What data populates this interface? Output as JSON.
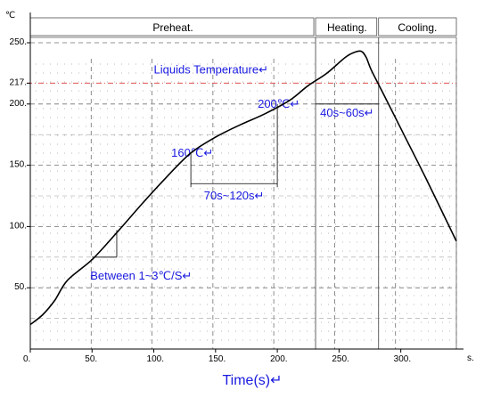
{
  "chart_data": {
    "type": "line",
    "yunit": "℃",
    "xunit": "s.",
    "xlabel": "Time(s)↵",
    "xlim": [
      0,
      345
    ],
    "ylim": [
      0,
      250
    ],
    "x_ticks": [
      {
        "value": 0,
        "label": "0."
      },
      {
        "value": 50,
        "label": "50."
      },
      {
        "value": 100,
        "label": "100."
      },
      {
        "value": 150,
        "label": "150."
      },
      {
        "value": 200,
        "label": "200."
      },
      {
        "value": 250,
        "label": "250."
      },
      {
        "value": 300,
        "label": "300."
      }
    ],
    "y_ticks": [
      {
        "value": 50,
        "label": "50."
      },
      {
        "value": 100,
        "label": "100."
      },
      {
        "value": 150,
        "label": "150."
      },
      {
        "value": 200,
        "label": "200."
      },
      {
        "value": 217,
        "label": "217."
      },
      {
        "value": 250,
        "label": "250."
      }
    ],
    "phases": [
      {
        "name": "Preheat.",
        "start": 0,
        "end": 231
      },
      {
        "name": "Heating.",
        "start": 231,
        "end": 282
      },
      {
        "name": "Cooling.",
        "start": 282,
        "end": 345
      }
    ],
    "liquidus": {
      "value": 217,
      "label": "Liquids Temperature↵",
      "color": "#e05050"
    },
    "profile": {
      "color": "#000000",
      "x": [
        0,
        10,
        20,
        30,
        50,
        70,
        90,
        110,
        130,
        150,
        170,
        190,
        210,
        225,
        240,
        255,
        262,
        268,
        272,
        276,
        285,
        300,
        320,
        345
      ],
      "y": [
        20,
        28,
        40,
        56,
        73,
        95,
        118,
        140,
        160,
        173,
        183,
        192,
        203,
        215,
        225,
        238,
        242,
        243,
        238,
        228,
        210,
        180,
        140,
        88
      ]
    },
    "annotations": {
      "preheat_low": {
        "label": "160℃↵",
        "x": 130,
        "y": 160
      },
      "preheat_high": {
        "label": "200℃↵",
        "x": 200,
        "y": 200
      },
      "preheat_span": {
        "label": "70s~120s↵",
        "x1": 130,
        "x2": 200,
        "y": 135
      },
      "ramp_rate": {
        "label": "Between 1~3℃/S↵",
        "x1": 50,
        "x2": 70,
        "y1": 75,
        "y2": 97
      },
      "liquidus_span": {
        "label": "40s~60s↵",
        "x1": 231,
        "x2": 282,
        "y": 200
      }
    }
  }
}
